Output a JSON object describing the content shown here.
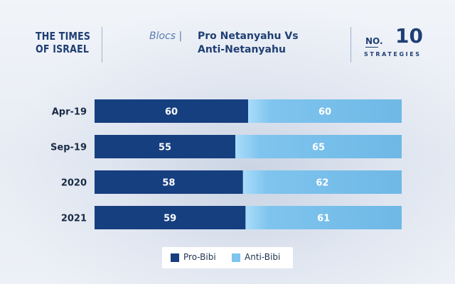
{
  "header": {
    "logo_line1": "THE TIMES",
    "logo_line2": "OF ISRAEL",
    "section_label": "Blocs |",
    "title_line1": "Pro Netanyahu Vs",
    "title_line2": "Anti-Netanyahu",
    "badge_no": "NO.",
    "badge_number": "10",
    "badge_word": "STRATEGIES"
  },
  "chart_data": {
    "type": "bar",
    "stacked": true,
    "orientation": "horizontal",
    "categories": [
      "Apr-19",
      "Sep-19",
      "2020",
      "2021"
    ],
    "series": [
      {
        "name": "Pro-Bibi",
        "values": [
          60,
          55,
          58,
          59
        ],
        "color": "#163f80"
      },
      {
        "name": "Anti-Bibi",
        "values": [
          60,
          65,
          62,
          61
        ],
        "color": "#7ec4ee"
      }
    ],
    "total": 120,
    "legend_position": "bottom-center",
    "grid": false
  }
}
